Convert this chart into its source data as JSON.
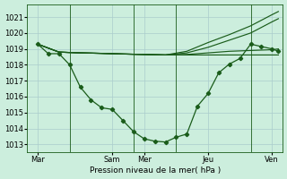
{
  "bg_color": "#cceedd",
  "grid_color": "#aacccc",
  "line_color": "#1a5c1a",
  "xlabel": "Pression niveau de la mer( hPa )",
  "ylim": [
    1012.5,
    1021.8
  ],
  "yticks": [
    1013,
    1014,
    1015,
    1016,
    1017,
    1018,
    1019,
    1020,
    1021
  ],
  "xlim": [
    0,
    12
  ],
  "xtick_pos": [
    0.5,
    4.0,
    5.5,
    8.5,
    11.5
  ],
  "xtick_labels": [
    "Mar",
    "Sam",
    "Mer",
    "Jeu",
    "Ven"
  ],
  "vline_pos": [
    2.0,
    5.0,
    7.0,
    10.5
  ],
  "main_x": [
    0.5,
    1.0,
    1.5,
    2.0,
    2.5,
    3.0,
    3.5,
    4.0,
    4.5,
    5.0,
    5.5,
    6.0,
    6.5,
    7.0,
    7.5,
    8.0,
    8.5,
    9.0,
    9.5,
    10.0,
    10.5,
    11.0,
    11.5,
    11.8
  ],
  "main_y": [
    1019.3,
    1018.7,
    1018.7,
    1018.0,
    1016.6,
    1015.8,
    1015.3,
    1015.2,
    1014.5,
    1013.8,
    1013.35,
    1013.2,
    1013.15,
    1013.45,
    1013.65,
    1015.4,
    1016.2,
    1017.5,
    1018.05,
    1018.4,
    1019.3,
    1019.15,
    1019.0,
    1018.85
  ],
  "upper_x": [
    0.5,
    1.5,
    2.5,
    3.5,
    4.5,
    5.5,
    6.5,
    7.5,
    8.5,
    9.5,
    10.5,
    11.5,
    11.8
  ],
  "upper_y": [
    1019.3,
    1018.8,
    1018.75,
    1018.72,
    1018.68,
    1018.65,
    1018.62,
    1018.85,
    1019.4,
    1019.9,
    1020.45,
    1021.15,
    1021.35
  ],
  "mid1_x": [
    0.5,
    1.5,
    2.5,
    3.5,
    4.5,
    5.5,
    6.5,
    7.5,
    8.5,
    9.5,
    10.5,
    11.5,
    11.8
  ],
  "mid1_y": [
    1019.3,
    1018.8,
    1018.75,
    1018.72,
    1018.68,
    1018.65,
    1018.62,
    1018.75,
    1019.1,
    1019.55,
    1020.0,
    1020.7,
    1020.9
  ],
  "mid2_x": [
    0.5,
    1.5,
    2.5,
    3.5,
    4.5,
    5.5,
    6.5,
    7.5,
    8.5,
    9.5,
    10.5,
    11.5,
    11.8
  ],
  "mid2_y": [
    1019.3,
    1018.8,
    1018.75,
    1018.72,
    1018.68,
    1018.65,
    1018.62,
    1018.65,
    1018.75,
    1018.85,
    1018.9,
    1018.95,
    1019.0
  ],
  "lower_x": [
    0.5,
    1.5,
    2.5,
    3.5,
    4.5,
    5.5,
    6.5,
    7.5,
    8.5,
    9.5,
    10.5,
    11.5,
    11.8
  ],
  "lower_y": [
    1019.3,
    1018.8,
    1018.75,
    1018.72,
    1018.68,
    1018.65,
    1018.62,
    1018.62,
    1018.62,
    1018.62,
    1018.62,
    1018.62,
    1018.62
  ]
}
